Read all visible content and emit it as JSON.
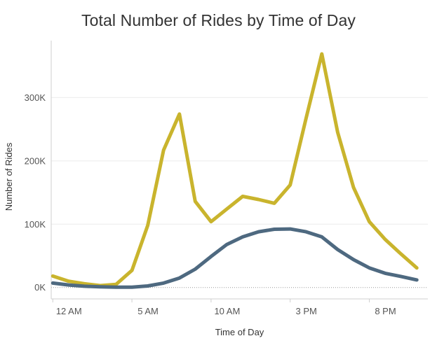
{
  "chart_data": {
    "type": "line",
    "title": "Total Number of Rides by Time of Day",
    "xlabel": "Time of Day",
    "ylabel": "Number of Rides",
    "x": [
      0,
      1,
      2,
      3,
      4,
      5,
      6,
      7,
      8,
      9,
      10,
      11,
      12,
      13,
      14,
      15,
      16,
      17,
      18,
      19,
      20,
      21,
      22,
      23
    ],
    "x_ticks": [
      {
        "value": 0,
        "label": "12 AM"
      },
      {
        "value": 5,
        "label": "5 AM"
      },
      {
        "value": 10,
        "label": "10 AM"
      },
      {
        "value": 15,
        "label": "3 PM"
      },
      {
        "value": 20,
        "label": "8 PM"
      }
    ],
    "y_ticks": [
      {
        "value": 0,
        "label": "0K"
      },
      {
        "value": 100000,
        "label": "100K"
      },
      {
        "value": 200000,
        "label": "200K"
      },
      {
        "value": 300000,
        "label": "300K"
      }
    ],
    "xlim": [
      -0.1,
      23.7
    ],
    "ylim": [
      -18000,
      390000
    ],
    "grid": true,
    "series": [
      {
        "color": "#C9B42D",
        "values": [
          18000,
          10000,
          6000,
          3000,
          5000,
          27000,
          98000,
          217000,
          274000,
          136000,
          104000,
          124000,
          144000,
          139000,
          133000,
          162000,
          267000,
          369000,
          245000,
          158000,
          104000,
          76000,
          53000,
          31000
        ]
      },
      {
        "color": "#4E6980",
        "values": [
          7000,
          4000,
          2000,
          1000,
          500,
          500,
          2500,
          7000,
          15000,
          29000,
          49000,
          68000,
          80000,
          88000,
          92000,
          92500,
          88000,
          80000,
          60000,
          44000,
          31000,
          22500,
          17500,
          12000
        ]
      }
    ]
  }
}
